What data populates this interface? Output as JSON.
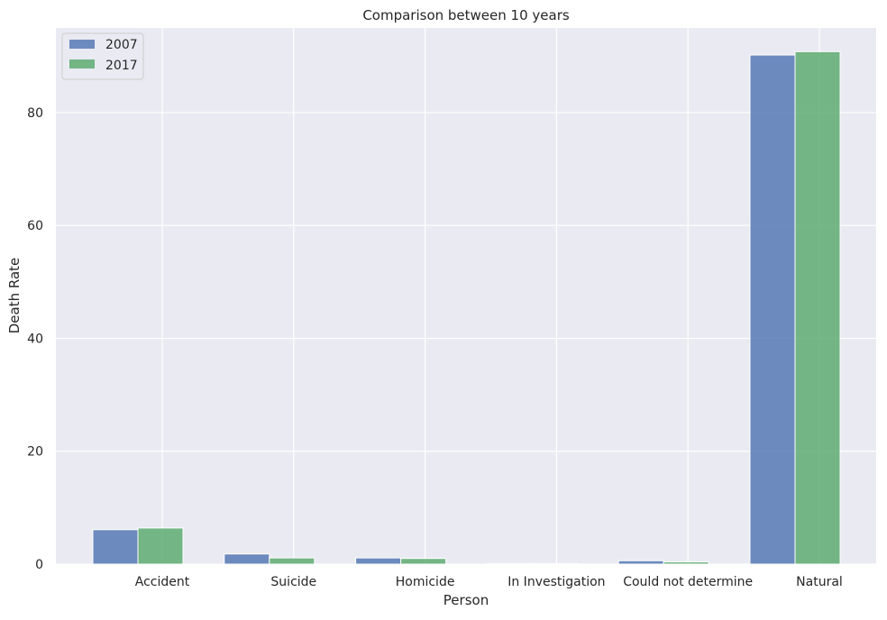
{
  "chart_data": {
    "type": "bar",
    "title": "Comparison between 10 years",
    "xlabel": "Person",
    "ylabel": "Death Rate",
    "categories": [
      "Accident",
      "Suicide",
      "Homicide",
      "In Investigation",
      "Could not determine",
      "Natural"
    ],
    "series": [
      {
        "name": "2007",
        "color": "#4c72b0",
        "values": [
          6.1,
          1.8,
          1.1,
          0.1,
          0.6,
          90.2
        ]
      },
      {
        "name": "2017",
        "color": "#55a868",
        "values": [
          6.4,
          1.1,
          1.0,
          0.1,
          0.4,
          90.8
        ]
      }
    ],
    "ylim": [
      0,
      95
    ],
    "yticks": [
      0,
      20,
      40,
      60,
      80
    ],
    "grid": true,
    "legend_position": "top-left",
    "background_color": "#eaeaf2",
    "grid_color": "#ffffff"
  }
}
